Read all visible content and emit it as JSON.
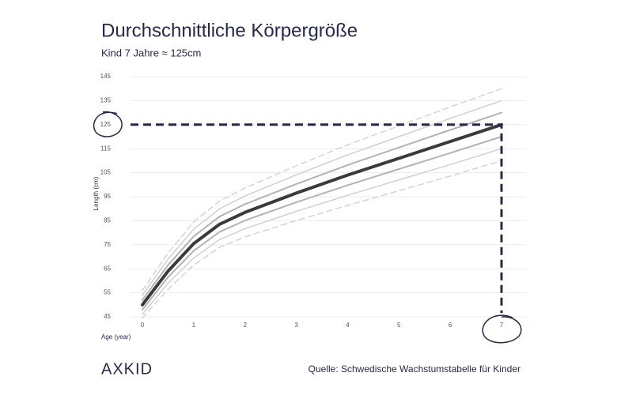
{
  "chart_data": {
    "type": "line",
    "title": "Durchschnittliche Körpergröße",
    "subtitle": "Kind 7 Jahre ≈ 125cm",
    "x_label": "Age (year)",
    "y_label": "Length (cm)",
    "source": "Quelle: Schwedische Wachstumstabelle für Kinder",
    "logo": "AXKID",
    "x": [
      0,
      0.5,
      1,
      1.5,
      2,
      3,
      4,
      5,
      6,
      7
    ],
    "series": [
      {
        "color": "#d4d4d4",
        "dashed": true,
        "line_width": 1.5,
        "values": [
          44.5,
          56.5,
          66.5,
          73.9,
          78.3,
          85.1,
          91.4,
          97.5,
          103.6,
          110
        ]
      },
      {
        "color": "#d4d4d4",
        "dashed": true,
        "line_width": 1.5,
        "values": [
          56,
          71.5,
          84.5,
          93.1,
          98.7,
          107.9,
          116.6,
          124.5,
          132.4,
          140
        ]
      },
      {
        "color": "#d0d0d0",
        "dashed": false,
        "line_width": 1.5,
        "values": [
          46,
          59,
          69.5,
          77.1,
          81.7,
          88.9,
          95.6,
          102,
          108.4,
          115
        ]
      },
      {
        "color": "#d0d0d0",
        "dashed": false,
        "line_width": 1.5,
        "values": [
          54,
          69,
          81.5,
          89.9,
          95.3,
          104.1,
          112.4,
          120,
          127.6,
          135
        ]
      },
      {
        "color": "#b3b3b3",
        "dashed": false,
        "line_width": 2,
        "values": [
          48,
          61.5,
          72.5,
          80.3,
          85.1,
          92.7,
          99.8,
          106.5,
          113.2,
          120
        ]
      },
      {
        "color": "#b3b3b3",
        "dashed": false,
        "line_width": 2,
        "values": [
          52,
          66.5,
          78.5,
          86.7,
          91.9,
          100.3,
          108.2,
          115.5,
          122.8,
          130
        ]
      },
      {
        "color": "#3a3a3a",
        "dashed": false,
        "line_width": 4,
        "values": [
          50,
          64,
          75.5,
          83.5,
          88.5,
          96.5,
          104,
          111,
          118,
          125
        ]
      }
    ],
    "highlight": {
      "x": 7,
      "y": 125,
      "color": "#262a4a"
    },
    "xlim": [
      0,
      7
    ],
    "xticks": [
      0,
      1,
      2,
      3,
      4,
      5,
      6,
      7
    ],
    "ylim": [
      45,
      145
    ],
    "yticks": [
      45,
      55,
      65,
      75,
      85,
      95,
      105,
      115,
      125,
      135,
      145
    ],
    "grid": true
  }
}
